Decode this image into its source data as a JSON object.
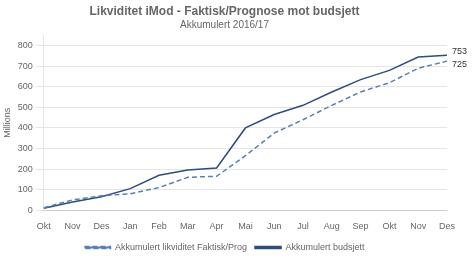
{
  "chart_data": {
    "type": "line",
    "title": "Likviditet iMod - Faktisk/Prognose mot budsjett",
    "subtitle": "Akkumulert 2016/17",
    "ylabel": "Millions",
    "categories": [
      "Okt",
      "Nov",
      "Des",
      "Jan",
      "Feb",
      "Mar",
      "Apr",
      "Mai",
      "Jun",
      "Jul",
      "Aug",
      "Sep",
      "Okt",
      "Nov",
      "Des"
    ],
    "series": [
      {
        "name": "Akkumulert likviditet Faktisk/Prog",
        "color": "#5b7fb5",
        "line_style": "dashed",
        "values": [
          12,
          50,
          70,
          80,
          110,
          160,
          165,
          265,
          375,
          440,
          510,
          575,
          620,
          690,
          725
        ]
      },
      {
        "name": "Akkumulert budsjett",
        "color": "#2e4d7b",
        "line_style": "solid",
        "values": [
          10,
          40,
          65,
          105,
          170,
          195,
          205,
          400,
          465,
          510,
          575,
          635,
          680,
          745,
          753
        ]
      }
    ],
    "annotations": [
      {
        "text": "753",
        "y": 753
      },
      {
        "text": "725",
        "y": 725
      }
    ],
    "ylim": [
      0,
      850
    ],
    "yticks": [
      0,
      100,
      200,
      300,
      400,
      500,
      600,
      700,
      800
    ],
    "grid": true,
    "legend": "bottom"
  }
}
